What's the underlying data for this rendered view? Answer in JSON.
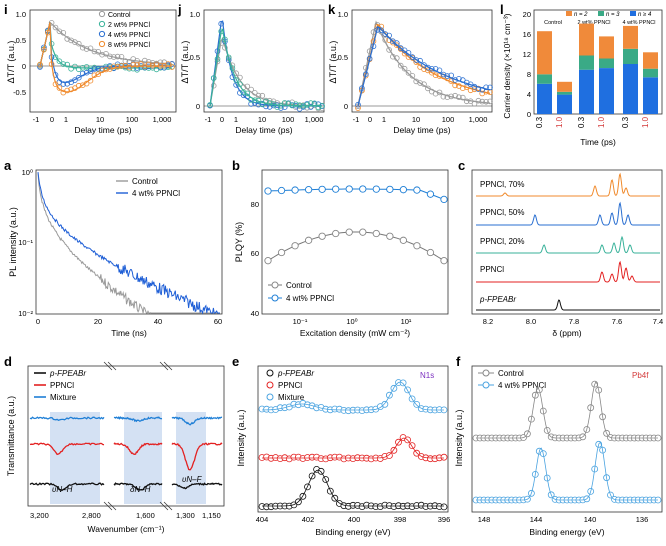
{
  "panel_labels": {
    "i": "i",
    "j": "j",
    "k": "k",
    "l": "l",
    "a": "a",
    "b": "b",
    "c": "c",
    "d": "d",
    "e": "e",
    "f": "f"
  },
  "colors": {
    "control": "#9a9a9a",
    "c2": "#39b29a",
    "c4": "#2a6fd1",
    "c8": "#f08a2c",
    "ppncl": "#e32222",
    "mix": "#1f7fd6",
    "black": "#111111",
    "n2": "#f08a3a",
    "n3": "#3aaa86",
    "n4": "#1f6fe0",
    "region": "#c9daf0"
  },
  "ta": {
    "ylabel": "ΔT/T (a.u.)",
    "xlabel": "Delay time (ps)",
    "xticks": [
      "-1",
      "0",
      "1",
      "10",
      "100",
      "1,000"
    ],
    "yticks": [
      "-0.5",
      "0",
      "0.5",
      "1.0"
    ],
    "legend": [
      "Control",
      "2 wt% PPNCl",
      "4 wt% PPNCl",
      "8 wt% PPNCl"
    ]
  },
  "l": {
    "ylabel": "Carrier density (×10¹⁸ cm⁻³)",
    "xlabel": "Time (ps)",
    "yticks": [
      "0",
      "4",
      "8",
      "12",
      "16",
      "20"
    ],
    "legend": [
      "n = 2",
      "n = 3",
      "n ≥ 4"
    ],
    "groups": [
      "Control",
      "2 wt% PPNCl",
      "4 wt% PPNCl"
    ],
    "times": [
      "0.3",
      "1.0",
      "0.3",
      "1.0",
      "0.3",
      "1.0"
    ]
  },
  "a": {
    "ylabel": "PL intensity (a.u.)",
    "xlabel": "Time (ns)",
    "yticks": [
      "10⁰",
      "10⁻¹",
      "10⁻²"
    ],
    "xticks": [
      "0",
      "20",
      "40",
      "60"
    ],
    "legend": [
      "Control",
      "4 wt% PPNCl"
    ]
  },
  "b": {
    "ylabel": "PLQY (%)",
    "xlabel": "Excitation density (mW cm⁻²)",
    "yticks": [
      "40",
      "60",
      "80"
    ],
    "xticks": [
      "10⁻¹",
      "10⁰",
      "10¹"
    ],
    "legend": [
      "Control",
      "4 wt% PPNCl"
    ]
  },
  "c": {
    "xlabel": "δ (ppm)",
    "xticks": [
      "8.2",
      "8.0",
      "7.8",
      "7.6",
      "7.4"
    ],
    "labels": [
      "PPNCl, 70%",
      "PPNCl, 50%",
      "PPNCl, 20%",
      "PPNCl",
      "p-FPEABr"
    ]
  },
  "d": {
    "ylabel": "Transmittance (a.u.)",
    "xlabel": "Wavenumber (cm⁻¹)",
    "xticks": [
      "3,200",
      "2,800",
      "1,600",
      "1,300",
      "1,150"
    ],
    "legend": [
      "p-FPEABr",
      "PPNCl",
      "Mixture"
    ],
    "regions": [
      "υN–H",
      "δN–H",
      "υN–F"
    ]
  },
  "e": {
    "ylabel": "Intensity (a.u.)",
    "xlabel": "Binding energy (eV)",
    "xticks": [
      "404",
      "402",
      "400",
      "398",
      "396"
    ],
    "legend": [
      "p-FPEABr",
      "PPNCl",
      "Mixture"
    ],
    "tag": "N1s"
  },
  "f": {
    "ylabel": "Intensity (a.u.)",
    "xlabel": "Binding energy (eV)",
    "xticks": [
      "148",
      "144",
      "140",
      "136"
    ],
    "legend": [
      "Control",
      "4 wt% PPNCl"
    ],
    "tag": "Pb4f"
  }
}
